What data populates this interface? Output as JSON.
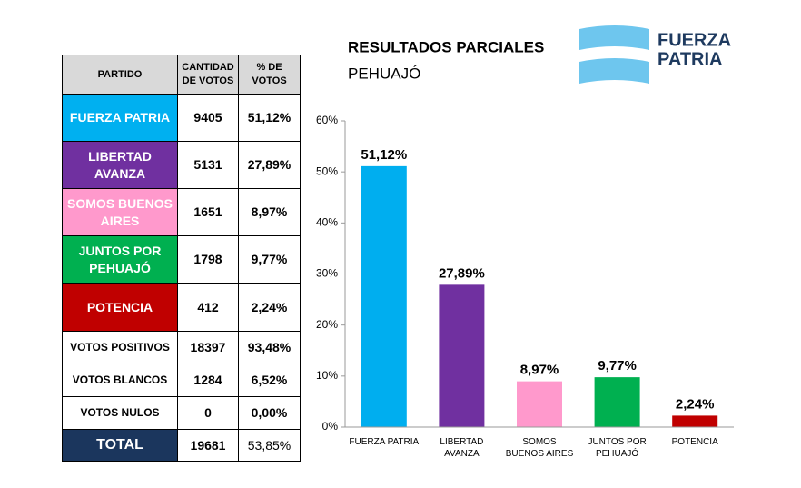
{
  "table": {
    "header": [
      "PARTIDO",
      "CANTIDAD DE VOTOS",
      "% DE VOTOS"
    ],
    "rows": [
      {
        "party": "FUERZA PATRIA",
        "votes": 9405,
        "pct": "51,12%",
        "color": "#00b0f0"
      },
      {
        "party": "LIBERTAD AVANZA",
        "votes": 5131,
        "pct": "27,89%",
        "color": "#7030a0"
      },
      {
        "party": "SOMOS BUENOS AIRES",
        "votes": 1651,
        "pct": "8,97%",
        "color": "#ff99cc"
      },
      {
        "party": "JUNTOS POR PEHUAJÓ",
        "votes": 1798,
        "pct": "9,77%",
        "color": "#00b050"
      },
      {
        "party": "POTENCIA",
        "votes": 412,
        "pct": "2,24%",
        "color": "#c00000"
      },
      {
        "party": "VOTOS POSITIVOS",
        "votes": 18397,
        "pct": "93,48%"
      },
      {
        "party": "VOTOS BLANCOS",
        "votes": 1284,
        "pct": "6,52%"
      },
      {
        "party": "VOTOS NULOS",
        "votes": 0,
        "pct": "0,00%"
      },
      {
        "party": "TOTAL",
        "votes": 19681,
        "pct": "53,85%",
        "color": "#1b365d"
      }
    ]
  },
  "logo": [
    "FUERZA",
    "PATRIA"
  ],
  "chart_data": {
    "type": "bar",
    "title": "RESULTADOS PARCIALES",
    "subtitle": "PEHUAJÓ",
    "categories": [
      "FUERZA PATRIA",
      "LIBERTAD AVANZA",
      "SOMOS BUENOS AIRES",
      "JUNTOS POR PEHUAJÓ",
      "POTENCIA"
    ],
    "values": [
      51.12,
      27.89,
      8.97,
      9.77,
      2.24
    ],
    "value_labels": [
      "51,12%",
      "27,89%",
      "8,97%",
      "9,77%",
      "2,24%"
    ],
    "colors": [
      "#00aeef",
      "#7030a0",
      "#ff99cc",
      "#00b050",
      "#c00000"
    ],
    "ylim": [
      0,
      60
    ],
    "yticks": [
      {
        "value": 0,
        "label": "0%"
      },
      {
        "value": 10,
        "label": "10%"
      },
      {
        "value": 20,
        "label": "20%"
      },
      {
        "value": 30,
        "label": "30%"
      },
      {
        "value": 40,
        "label": "40%"
      },
      {
        "value": 50,
        "label": "50%"
      },
      {
        "value": 60,
        "label": "60%"
      }
    ]
  }
}
